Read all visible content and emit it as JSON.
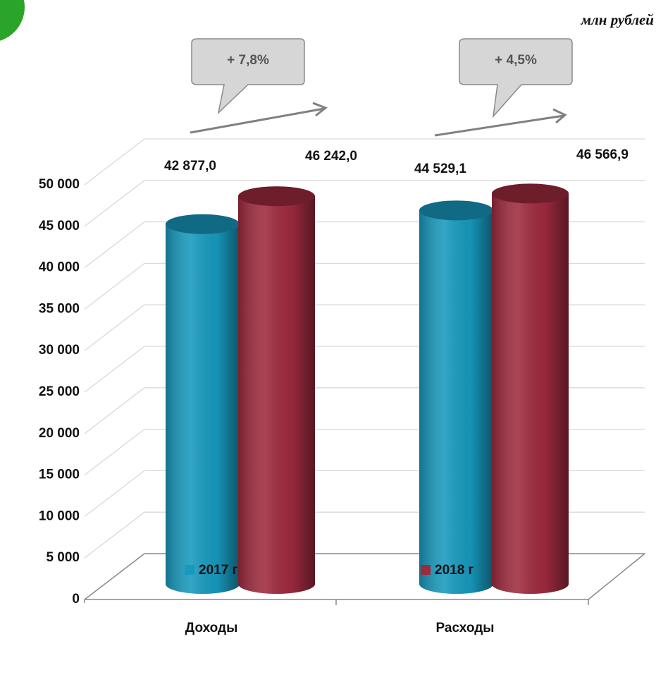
{
  "chart_data": {
    "type": "bar",
    "unit_label": "млн рублей",
    "annotations": [
      "+ 7,8%",
      "+ 4,5%"
    ],
    "categories": [
      "Доходы",
      "Расходы"
    ],
    "series": [
      {
        "name": "2017 г",
        "color": "#1799bd",
        "values": [
          42877.0,
          44529.1
        ],
        "value_labels": [
          "42 877,0",
          "44 529,1"
        ]
      },
      {
        "name": "2018 г",
        "color": "#9e2a3e",
        "values": [
          46242.0,
          46566.9
        ],
        "value_labels": [
          "46 242,0",
          "46 566,9"
        ]
      }
    ],
    "ylim": [
      0,
      50000
    ],
    "yticks": [
      0,
      {
        "value": 5000,
        "label": "5 000"
      },
      {
        "value": 10000,
        "label": "10 000"
      },
      {
        "value": 15000,
        "label": "15 000"
      },
      {
        "value": 20000,
        "label": "20 000"
      },
      {
        "value": 25000,
        "label": "25 000"
      },
      {
        "value": 30000,
        "label": "30 000"
      },
      {
        "value": 35000,
        "label": "35 000"
      },
      {
        "value": 40000,
        "label": "40 000"
      },
      {
        "value": 45000,
        "label": "45 000"
      },
      {
        "value": 50000,
        "label": "50 000"
      }
    ],
    "grid": true
  }
}
